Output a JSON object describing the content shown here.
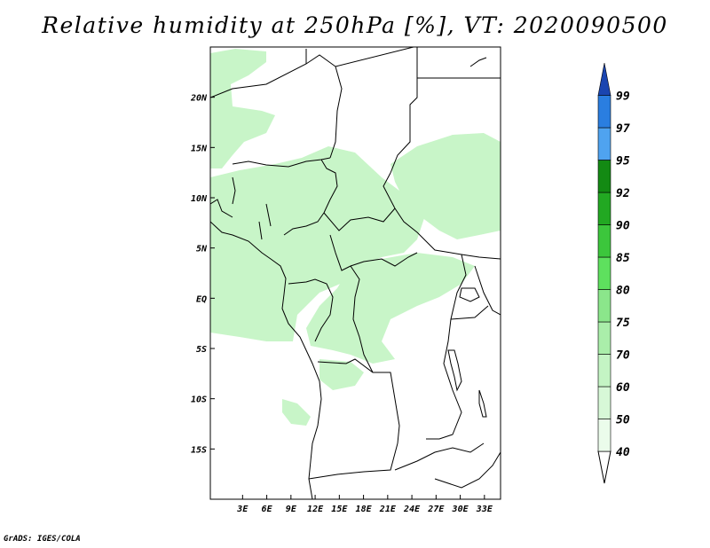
{
  "title": "Relative humidity at 250hPa [%], VT: 2020090500",
  "credit": "GrADS: IGES/COLA",
  "map": {
    "lon_range": [
      -1,
      35
    ],
    "lat_range": [
      -20,
      25
    ],
    "lon_ticks": [
      {
        "value": 3,
        "label": "3E"
      },
      {
        "value": 6,
        "label": "6E"
      },
      {
        "value": 9,
        "label": "9E"
      },
      {
        "value": 12,
        "label": "12E"
      },
      {
        "value": 15,
        "label": "15E"
      },
      {
        "value": 18,
        "label": "18E"
      },
      {
        "value": 21,
        "label": "21E"
      },
      {
        "value": 24,
        "label": "24E"
      },
      {
        "value": 27,
        "label": "27E"
      },
      {
        "value": 30,
        "label": "30E"
      },
      {
        "value": 33,
        "label": "33E"
      }
    ],
    "lat_ticks": [
      {
        "value": 20,
        "label": "20N"
      },
      {
        "value": 15,
        "label": "15N"
      },
      {
        "value": 10,
        "label": "10N"
      },
      {
        "value": 5,
        "label": "5N"
      },
      {
        "value": 0,
        "label": "EQ"
      },
      {
        "value": -5,
        "label": "5S"
      },
      {
        "value": -10,
        "label": "10S"
      },
      {
        "value": -15,
        "label": "15S"
      }
    ],
    "fill_color": "#c8f5c8"
  },
  "legend": {
    "levels": [
      {
        "label": "40",
        "color": "#ebfceb"
      },
      {
        "label": "50",
        "color": "#d7f8d7"
      },
      {
        "label": "60",
        "color": "#c4f4c4"
      },
      {
        "label": "70",
        "color": "#aaeeaa"
      },
      {
        "label": "75",
        "color": "#8be68b"
      },
      {
        "label": "80",
        "color": "#5ee05e"
      },
      {
        "label": "85",
        "color": "#3cc63c"
      },
      {
        "label": "90",
        "color": "#22a822"
      },
      {
        "label": "92",
        "color": "#138a13"
      },
      {
        "label": "95",
        "color": "#4fa3f0"
      },
      {
        "label": "97",
        "color": "#2a7ee0"
      },
      {
        "label": "99",
        "color": "#1a55c4"
      }
    ],
    "top_arrow_color": "#1a45b0"
  }
}
